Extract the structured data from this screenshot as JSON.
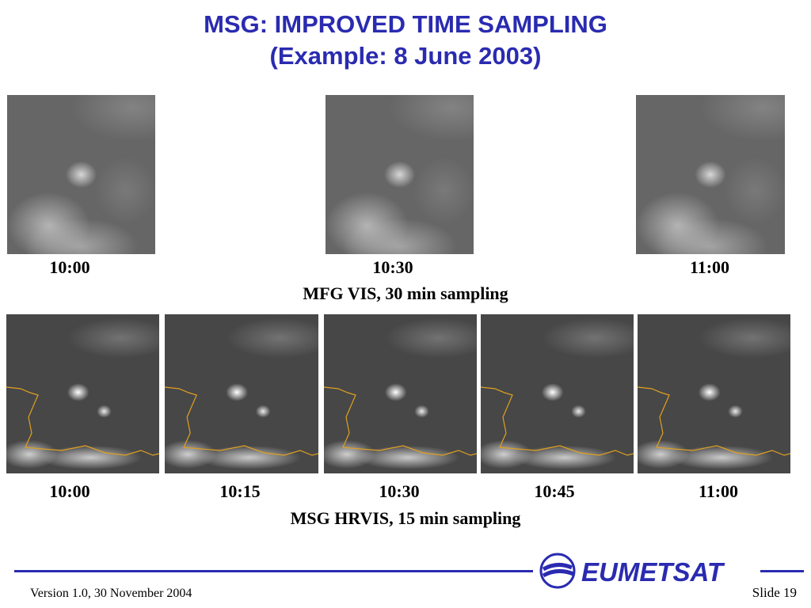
{
  "title": {
    "line1": "MSG: IMPROVED TIME SAMPLING",
    "line2": "(Example: 8 June 2003)"
  },
  "mfg": {
    "caption": "MFG VIS, 30 min sampling",
    "times": [
      "10:00",
      "10:30",
      "11:00"
    ]
  },
  "msg": {
    "caption": "MSG HRVIS, 15 min sampling",
    "times": [
      "10:00",
      "10:15",
      "10:30",
      "10:45",
      "11:00"
    ]
  },
  "footer": {
    "version": "Version 1.0, 30 November 2004",
    "slide": "Slide 19",
    "logo_text": "EUMETSAT"
  },
  "colors": {
    "title": "#2a2bb0",
    "rule": "#2a2bb0",
    "coastline": "#e0a020"
  }
}
